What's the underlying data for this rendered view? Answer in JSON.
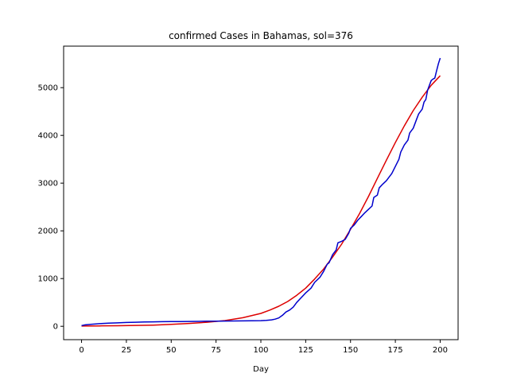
{
  "chart_data": {
    "type": "line",
    "title": "confirmed Cases in Bahamas, sol=376",
    "xlabel": "Day",
    "ylabel": "",
    "xlim": [
      -10,
      210
    ],
    "ylim": [
      -280,
      5870
    ],
    "xticks": [
      0,
      25,
      50,
      75,
      100,
      125,
      150,
      175,
      200
    ],
    "yticks": [
      0,
      1000,
      2000,
      3000,
      4000,
      5000
    ],
    "grid": false,
    "legend": "none",
    "series": [
      {
        "color": "#0000cc",
        "x": [
          0,
          2,
          5,
          8,
          10,
          15,
          20,
          25,
          30,
          35,
          40,
          45,
          50,
          55,
          60,
          65,
          70,
          75,
          80,
          85,
          90,
          95,
          100,
          103,
          106,
          108,
          110,
          112,
          114,
          116,
          118,
          120,
          122,
          125,
          128,
          130,
          133,
          135,
          137,
          138,
          140,
          142,
          143,
          145,
          147,
          149,
          150,
          152,
          154,
          156,
          158,
          160,
          162,
          163,
          165,
          166,
          168,
          170,
          172,
          173,
          175,
          177,
          178,
          180,
          182,
          183,
          185,
          187,
          188,
          190,
          191,
          192,
          193,
          194,
          195,
          196,
          197,
          198,
          199,
          200
        ],
        "values": [
          15,
          30,
          40,
          48,
          55,
          65,
          72,
          80,
          85,
          90,
          93,
          96,
          98,
          100,
          102,
          104,
          106,
          108,
          110,
          112,
          113,
          115,
          118,
          125,
          135,
          150,
          175,
          230,
          300,
          340,
          400,
          500,
          580,
          700,
          800,
          920,
          1030,
          1150,
          1300,
          1330,
          1500,
          1600,
          1750,
          1780,
          1820,
          1950,
          2050,
          2120,
          2220,
          2300,
          2380,
          2450,
          2520,
          2700,
          2750,
          2900,
          2980,
          3050,
          3150,
          3200,
          3350,
          3500,
          3650,
          3800,
          3900,
          4050,
          4150,
          4350,
          4450,
          4550,
          4700,
          4750,
          4950,
          5050,
          5150,
          5180,
          5200,
          5350,
          5500,
          5620
        ]
      },
      {
        "color": "#dd0000",
        "x": [
          0,
          10,
          20,
          30,
          40,
          50,
          60,
          70,
          80,
          90,
          100,
          105,
          110,
          115,
          120,
          125,
          130,
          135,
          140,
          145,
          150,
          155,
          160,
          165,
          170,
          175,
          180,
          185,
          190,
          195,
          200
        ],
        "values": [
          5,
          8,
          12,
          18,
          25,
          40,
          60,
          85,
          120,
          180,
          270,
          340,
          420,
          520,
          650,
          800,
          990,
          1200,
          1450,
          1720,
          2030,
          2360,
          2720,
          3100,
          3480,
          3850,
          4200,
          4520,
          4800,
          5050,
          5250
        ]
      }
    ]
  }
}
